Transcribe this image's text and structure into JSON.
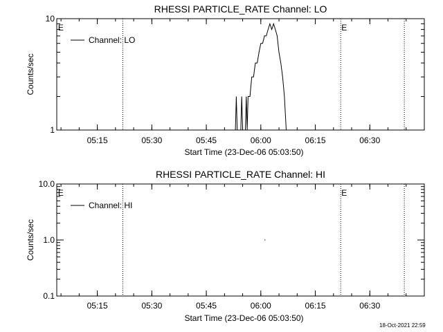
{
  "footer": {
    "timestamp": "18-Oct-2021 22:59"
  },
  "chart_data": [
    {
      "type": "line",
      "title": "RHESSI PARTICLE_RATE Channel: LO",
      "xlabel": "Start Time (23-Dec-06 05:03:50)",
      "ylabel": "Counts/sec",
      "y_scale": "log",
      "xlim": [
        "05:03:50",
        "06:45:00"
      ],
      "ylim": [
        1,
        10
      ],
      "x_ticks": [
        "05:15",
        "05:30",
        "05:45",
        "06:00",
        "06:15",
        "06:30"
      ],
      "y_ticks": [
        "1",
        "10"
      ],
      "legend": {
        "placement": "top-left",
        "entries": [
          "Channel: LO"
        ]
      },
      "markers": [
        {
          "time": "05:04:00",
          "label": "E"
        },
        {
          "time": "05:22:00",
          "label": ""
        },
        {
          "time": "06:22:00",
          "label": "E"
        },
        {
          "time": "06:39:30",
          "label": ""
        }
      ],
      "series": [
        {
          "name": "Channel: LO",
          "points": [
            [
              "05:53:00",
              1
            ],
            [
              "05:53:15",
              2
            ],
            [
              "05:53:30",
              1
            ],
            [
              "05:54:30",
              1
            ],
            [
              "05:54:45",
              2
            ],
            [
              "05:55:00",
              1
            ],
            [
              "05:55:45",
              1
            ],
            [
              "05:56:00",
              2
            ],
            [
              "05:56:15",
              1
            ],
            [
              "05:56:30",
              2
            ],
            [
              "05:57:00",
              2
            ],
            [
              "05:57:30",
              3
            ],
            [
              "05:58:00",
              3
            ],
            [
              "05:58:30",
              4
            ],
            [
              "05:59:00",
              4
            ],
            [
              "05:59:30",
              5
            ],
            [
              "06:00:00",
              6
            ],
            [
              "06:00:30",
              6
            ],
            [
              "06:01:00",
              7
            ],
            [
              "06:01:30",
              7
            ],
            [
              "06:02:00",
              8
            ],
            [
              "06:02:30",
              9
            ],
            [
              "06:03:00",
              8
            ],
            [
              "06:03:30",
              9
            ],
            [
              "06:04:00",
              8
            ],
            [
              "06:04:30",
              7
            ],
            [
              "06:05:00",
              5
            ],
            [
              "06:05:30",
              4
            ],
            [
              "06:06:00",
              3
            ],
            [
              "06:06:30",
              2
            ],
            [
              "06:07:00",
              1
            ]
          ]
        }
      ]
    },
    {
      "type": "line",
      "title": "RHESSI PARTICLE_RATE Channel: HI",
      "xlabel": "Start Time (23-Dec-06 05:03:50)",
      "ylabel": "Counts/sec",
      "y_scale": "log",
      "xlim": [
        "05:03:50",
        "06:45:00"
      ],
      "ylim": [
        0.1,
        10.0
      ],
      "x_ticks": [
        "05:15",
        "05:30",
        "05:45",
        "06:00",
        "06:15",
        "06:30"
      ],
      "y_ticks": [
        "0.1",
        "1.0",
        "10.0"
      ],
      "legend": {
        "placement": "top-left",
        "entries": [
          "Channel: HI"
        ]
      },
      "markers": [
        {
          "time": "05:04:00",
          "label": "E"
        },
        {
          "time": "05:22:00",
          "label": ""
        },
        {
          "time": "06:22:00",
          "label": "E"
        },
        {
          "time": "06:39:30",
          "label": ""
        }
      ],
      "series": [
        {
          "name": "Channel: HI",
          "points": [
            [
              "06:01:00",
              1.0
            ],
            [
              "06:01:15",
              1.0
            ]
          ]
        }
      ]
    }
  ]
}
